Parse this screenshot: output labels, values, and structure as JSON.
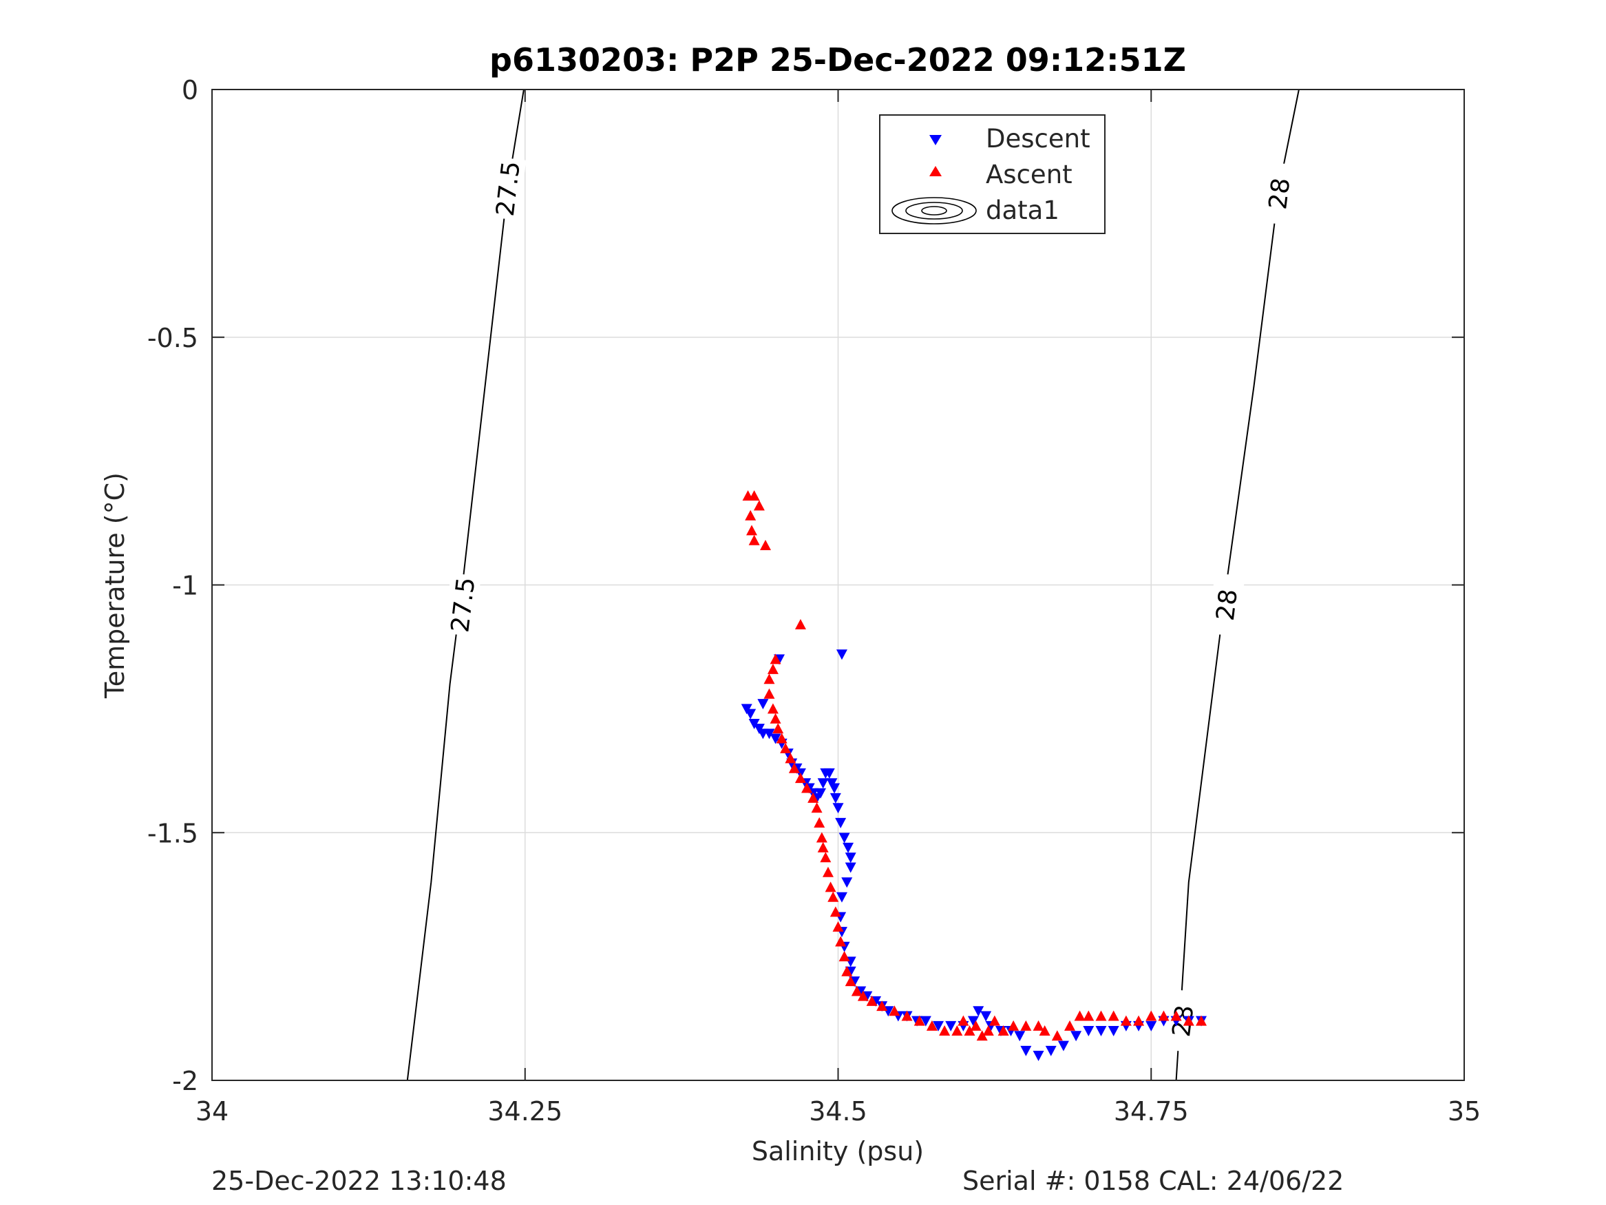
{
  "chart_data": {
    "type": "scatter",
    "title": "p6130203: P2P 25-Dec-2022 09:12:51Z",
    "xlabel": "Salinity (psu)",
    "ylabel": "Temperature (°C)",
    "xlim": [
      34,
      35
    ],
    "ylim": [
      -2,
      0
    ],
    "x_ticks": [
      34,
      34.25,
      34.5,
      34.75,
      35
    ],
    "x_tick_labels": [
      "34",
      "34.25",
      "34.5",
      "34.75",
      "35"
    ],
    "y_ticks": [
      -2,
      -1.5,
      -1,
      -0.5,
      0
    ],
    "y_tick_labels": [
      "-2",
      "-1.5",
      "-1",
      "-0.5",
      "0"
    ],
    "grid": true,
    "legend_position": "top-center",
    "legend": [
      "Descent",
      "Ascent",
      "data1"
    ],
    "series": [
      {
        "name": "Descent",
        "marker": "triangle-down",
        "color": "#0000ff",
        "points": [
          [
            34.427,
            -1.25
          ],
          [
            34.43,
            -1.26
          ],
          [
            34.433,
            -1.28
          ],
          [
            34.437,
            -1.29
          ],
          [
            34.44,
            -1.3
          ],
          [
            34.445,
            -1.3
          ],
          [
            34.45,
            -1.31
          ],
          [
            34.455,
            -1.32
          ],
          [
            34.46,
            -1.34
          ],
          [
            34.463,
            -1.36
          ],
          [
            34.467,
            -1.37
          ],
          [
            34.47,
            -1.38
          ],
          [
            34.474,
            -1.4
          ],
          [
            34.477,
            -1.41
          ],
          [
            34.48,
            -1.42
          ],
          [
            34.483,
            -1.43
          ],
          [
            34.486,
            -1.42
          ],
          [
            34.488,
            -1.4
          ],
          [
            34.49,
            -1.38
          ],
          [
            34.493,
            -1.38
          ],
          [
            34.495,
            -1.4
          ],
          [
            34.497,
            -1.41
          ],
          [
            34.498,
            -1.43
          ],
          [
            34.5,
            -1.45
          ],
          [
            34.502,
            -1.48
          ],
          [
            34.505,
            -1.51
          ],
          [
            34.508,
            -1.53
          ],
          [
            34.51,
            -1.55
          ],
          [
            34.51,
            -1.57
          ],
          [
            34.507,
            -1.6
          ],
          [
            34.503,
            -1.63
          ],
          [
            34.502,
            -1.67
          ],
          [
            34.503,
            -1.7
          ],
          [
            34.505,
            -1.73
          ],
          [
            34.51,
            -1.76
          ],
          [
            34.51,
            -1.78
          ],
          [
            34.513,
            -1.8
          ],
          [
            34.518,
            -1.82
          ],
          [
            34.523,
            -1.83
          ],
          [
            34.53,
            -1.84
          ],
          [
            34.535,
            -1.85
          ],
          [
            34.54,
            -1.86
          ],
          [
            34.548,
            -1.87
          ],
          [
            34.555,
            -1.87
          ],
          [
            34.563,
            -1.88
          ],
          [
            34.57,
            -1.88
          ],
          [
            34.58,
            -1.89
          ],
          [
            34.59,
            -1.89
          ],
          [
            34.6,
            -1.89
          ],
          [
            34.608,
            -1.88
          ],
          [
            34.612,
            -1.86
          ],
          [
            34.618,
            -1.87
          ],
          [
            34.622,
            -1.89
          ],
          [
            34.63,
            -1.9
          ],
          [
            34.638,
            -1.9
          ],
          [
            34.645,
            -1.91
          ],
          [
            34.65,
            -1.94
          ],
          [
            34.66,
            -1.95
          ],
          [
            34.67,
            -1.94
          ],
          [
            34.68,
            -1.93
          ],
          [
            34.69,
            -1.91
          ],
          [
            34.7,
            -1.9
          ],
          [
            34.71,
            -1.9
          ],
          [
            34.72,
            -1.9
          ],
          [
            34.73,
            -1.89
          ],
          [
            34.74,
            -1.89
          ],
          [
            34.75,
            -1.89
          ],
          [
            34.76,
            -1.88
          ],
          [
            34.77,
            -1.88
          ],
          [
            34.78,
            -1.88
          ],
          [
            34.79,
            -1.88
          ],
          [
            34.44,
            -1.24
          ],
          [
            34.453,
            -1.15
          ],
          [
            34.503,
            -1.14
          ]
        ]
      },
      {
        "name": "Ascent",
        "marker": "triangle-up",
        "color": "#ff0000",
        "points": [
          [
            34.428,
            -0.82
          ],
          [
            34.433,
            -0.82
          ],
          [
            34.437,
            -0.84
          ],
          [
            34.43,
            -0.86
          ],
          [
            34.431,
            -0.89
          ],
          [
            34.433,
            -0.91
          ],
          [
            34.442,
            -0.92
          ],
          [
            34.47,
            -1.08
          ],
          [
            34.45,
            -1.15
          ],
          [
            34.448,
            -1.17
          ],
          [
            34.445,
            -1.19
          ],
          [
            34.445,
            -1.22
          ],
          [
            34.448,
            -1.25
          ],
          [
            34.45,
            -1.27
          ],
          [
            34.452,
            -1.29
          ],
          [
            34.455,
            -1.31
          ],
          [
            34.458,
            -1.33
          ],
          [
            34.462,
            -1.35
          ],
          [
            34.465,
            -1.37
          ],
          [
            34.47,
            -1.39
          ],
          [
            34.475,
            -1.41
          ],
          [
            34.48,
            -1.43
          ],
          [
            34.483,
            -1.45
          ],
          [
            34.485,
            -1.48
          ],
          [
            34.487,
            -1.51
          ],
          [
            34.488,
            -1.53
          ],
          [
            34.49,
            -1.55
          ],
          [
            34.492,
            -1.58
          ],
          [
            34.494,
            -1.61
          ],
          [
            34.496,
            -1.63
          ],
          [
            34.498,
            -1.66
          ],
          [
            34.5,
            -1.69
          ],
          [
            34.502,
            -1.72
          ],
          [
            34.505,
            -1.75
          ],
          [
            34.507,
            -1.78
          ],
          [
            34.51,
            -1.8
          ],
          [
            34.515,
            -1.82
          ],
          [
            34.52,
            -1.83
          ],
          [
            34.527,
            -1.84
          ],
          [
            34.535,
            -1.85
          ],
          [
            34.545,
            -1.86
          ],
          [
            34.555,
            -1.87
          ],
          [
            34.565,
            -1.88
          ],
          [
            34.575,
            -1.89
          ],
          [
            34.585,
            -1.9
          ],
          [
            34.595,
            -1.9
          ],
          [
            34.6,
            -1.88
          ],
          [
            34.605,
            -1.9
          ],
          [
            34.61,
            -1.89
          ],
          [
            34.615,
            -1.91
          ],
          [
            34.62,
            -1.9
          ],
          [
            34.625,
            -1.88
          ],
          [
            34.632,
            -1.9
          ],
          [
            34.64,
            -1.89
          ],
          [
            34.65,
            -1.89
          ],
          [
            34.66,
            -1.89
          ],
          [
            34.665,
            -1.9
          ],
          [
            34.675,
            -1.91
          ],
          [
            34.685,
            -1.89
          ],
          [
            34.693,
            -1.87
          ],
          [
            34.7,
            -1.87
          ],
          [
            34.71,
            -1.87
          ],
          [
            34.72,
            -1.87
          ],
          [
            34.73,
            -1.88
          ],
          [
            34.74,
            -1.88
          ],
          [
            34.75,
            -1.87
          ],
          [
            34.76,
            -1.87
          ],
          [
            34.77,
            -1.87
          ],
          [
            34.78,
            -1.88
          ],
          [
            34.79,
            -1.88
          ]
        ]
      },
      {
        "name": "data1",
        "type": "contour",
        "color": "#000000",
        "lines": [
          {
            "label": "27.5",
            "points": [
              [
                34.156,
                -2
              ],
              [
                34.175,
                -1.6
              ],
              [
                34.19,
                -1.2
              ],
              [
                34.2,
                -1
              ],
              [
                34.218,
                -0.6
              ],
              [
                34.236,
                -0.2
              ],
              [
                34.249,
                0
              ]
            ],
            "label_positions": [
              [
                34.2,
                -1.04
              ],
              [
                34.236,
                -0.2
              ]
            ]
          },
          {
            "label": "28",
            "points": [
              [
                34.77,
                -2
              ],
              [
                34.78,
                -1.6
              ],
              [
                34.8,
                -1.2
              ],
              [
                34.81,
                -1
              ],
              [
                34.832,
                -0.6
              ],
              [
                34.852,
                -0.2
              ],
              [
                34.868,
                0
              ]
            ],
            "label_positions": [
              [
                34.775,
                -1.88
              ],
              [
                34.81,
                -1.04
              ],
              [
                34.852,
                -0.21
              ]
            ]
          }
        ]
      }
    ]
  },
  "footer": {
    "left": "25-Dec-2022 13:10:48",
    "right": "Serial #: 0158  CAL: 24/06/22"
  }
}
